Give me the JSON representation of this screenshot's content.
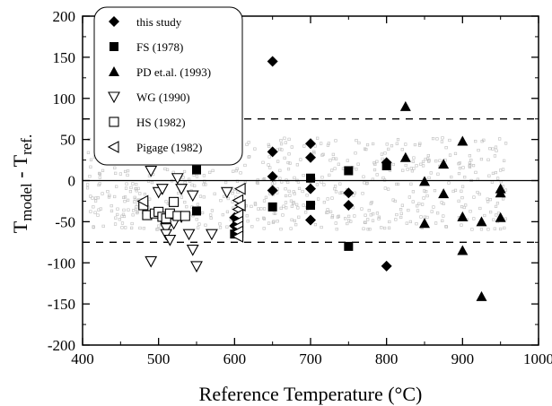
{
  "chart_data": {
    "type": "scatter",
    "xlabel": "Reference Temperature (°C)",
    "ylabel_main": "T",
    "ylabel_sub1": "model",
    "ylabel_mid": " - T",
    "ylabel_sub2": "ref.",
    "xlim": [
      400,
      1000
    ],
    "ylim": [
      -200,
      200
    ],
    "xticks": [
      400,
      500,
      600,
      700,
      800,
      900,
      1000
    ],
    "yticks": [
      -200,
      -150,
      -100,
      -50,
      0,
      50,
      100,
      150,
      200
    ],
    "zero_line": 0,
    "reference_lines": [
      75,
      -75
    ],
    "legend_position": "top-left",
    "series": [
      {
        "name": "this study",
        "marker": "diamond-filled",
        "points": [
          [
            600,
            -45
          ],
          [
            600,
            -55
          ],
          [
            650,
            145
          ],
          [
            650,
            35
          ],
          [
            650,
            5
          ],
          [
            650,
            -12
          ],
          [
            700,
            45
          ],
          [
            700,
            28
          ],
          [
            700,
            -10
          ],
          [
            700,
            -48
          ],
          [
            750,
            -15
          ],
          [
            750,
            -30
          ],
          [
            800,
            22
          ],
          [
            800,
            -104
          ]
        ]
      },
      {
        "name": "FS (1978)",
        "marker": "square-filled",
        "points": [
          [
            550,
            13
          ],
          [
            550,
            -37
          ],
          [
            600,
            -65
          ],
          [
            650,
            -32
          ],
          [
            700,
            3
          ],
          [
            700,
            -30
          ],
          [
            750,
            12
          ],
          [
            750,
            -80
          ],
          [
            800,
            18
          ]
        ]
      },
      {
        "name": "PD et.al. (1993)",
        "marker": "triangle-filled",
        "points": [
          [
            825,
            90
          ],
          [
            825,
            28
          ],
          [
            850,
            -1
          ],
          [
            850,
            -52
          ],
          [
            875,
            20
          ],
          [
            875,
            -16
          ],
          [
            900,
            48
          ],
          [
            900,
            -44
          ],
          [
            900,
            -85
          ],
          [
            925,
            -50
          ],
          [
            925,
            -141
          ],
          [
            950,
            -10
          ],
          [
            950,
            -15
          ],
          [
            950,
            -45
          ]
        ]
      },
      {
        "name": "WG (1990)",
        "marker": "triangle-down-open",
        "points": [
          [
            490,
            12
          ],
          [
            490,
            -98
          ],
          [
            500,
            -14
          ],
          [
            505,
            -10
          ],
          [
            505,
            -47
          ],
          [
            510,
            -58
          ],
          [
            510,
            -65
          ],
          [
            515,
            -72
          ],
          [
            520,
            -52
          ],
          [
            525,
            3
          ],
          [
            530,
            -10
          ],
          [
            530,
            -44
          ],
          [
            540,
            -65
          ],
          [
            545,
            -18
          ],
          [
            545,
            -84
          ],
          [
            550,
            -104
          ],
          [
            570,
            -65
          ],
          [
            590,
            -14
          ]
        ]
      },
      {
        "name": "HS (1982)",
        "marker": "square-open",
        "points": [
          [
            480,
            -30
          ],
          [
            485,
            -42
          ],
          [
            495,
            -40
          ],
          [
            500,
            -38
          ],
          [
            505,
            -44
          ],
          [
            510,
            -46
          ],
          [
            515,
            -40
          ],
          [
            520,
            -26
          ],
          [
            525,
            -43
          ],
          [
            535,
            -43
          ]
        ]
      },
      {
        "name": "Pigage (1982)",
        "marker": "triangle-left-open",
        "points": [
          [
            480,
            -25
          ],
          [
            605,
            -24
          ],
          [
            605,
            -35
          ],
          [
            605,
            -42
          ],
          [
            605,
            -50
          ],
          [
            605,
            -56
          ],
          [
            605,
            -62
          ],
          [
            605,
            -68
          ],
          [
            608,
            -10
          ],
          [
            608,
            -30
          ]
        ]
      }
    ]
  }
}
